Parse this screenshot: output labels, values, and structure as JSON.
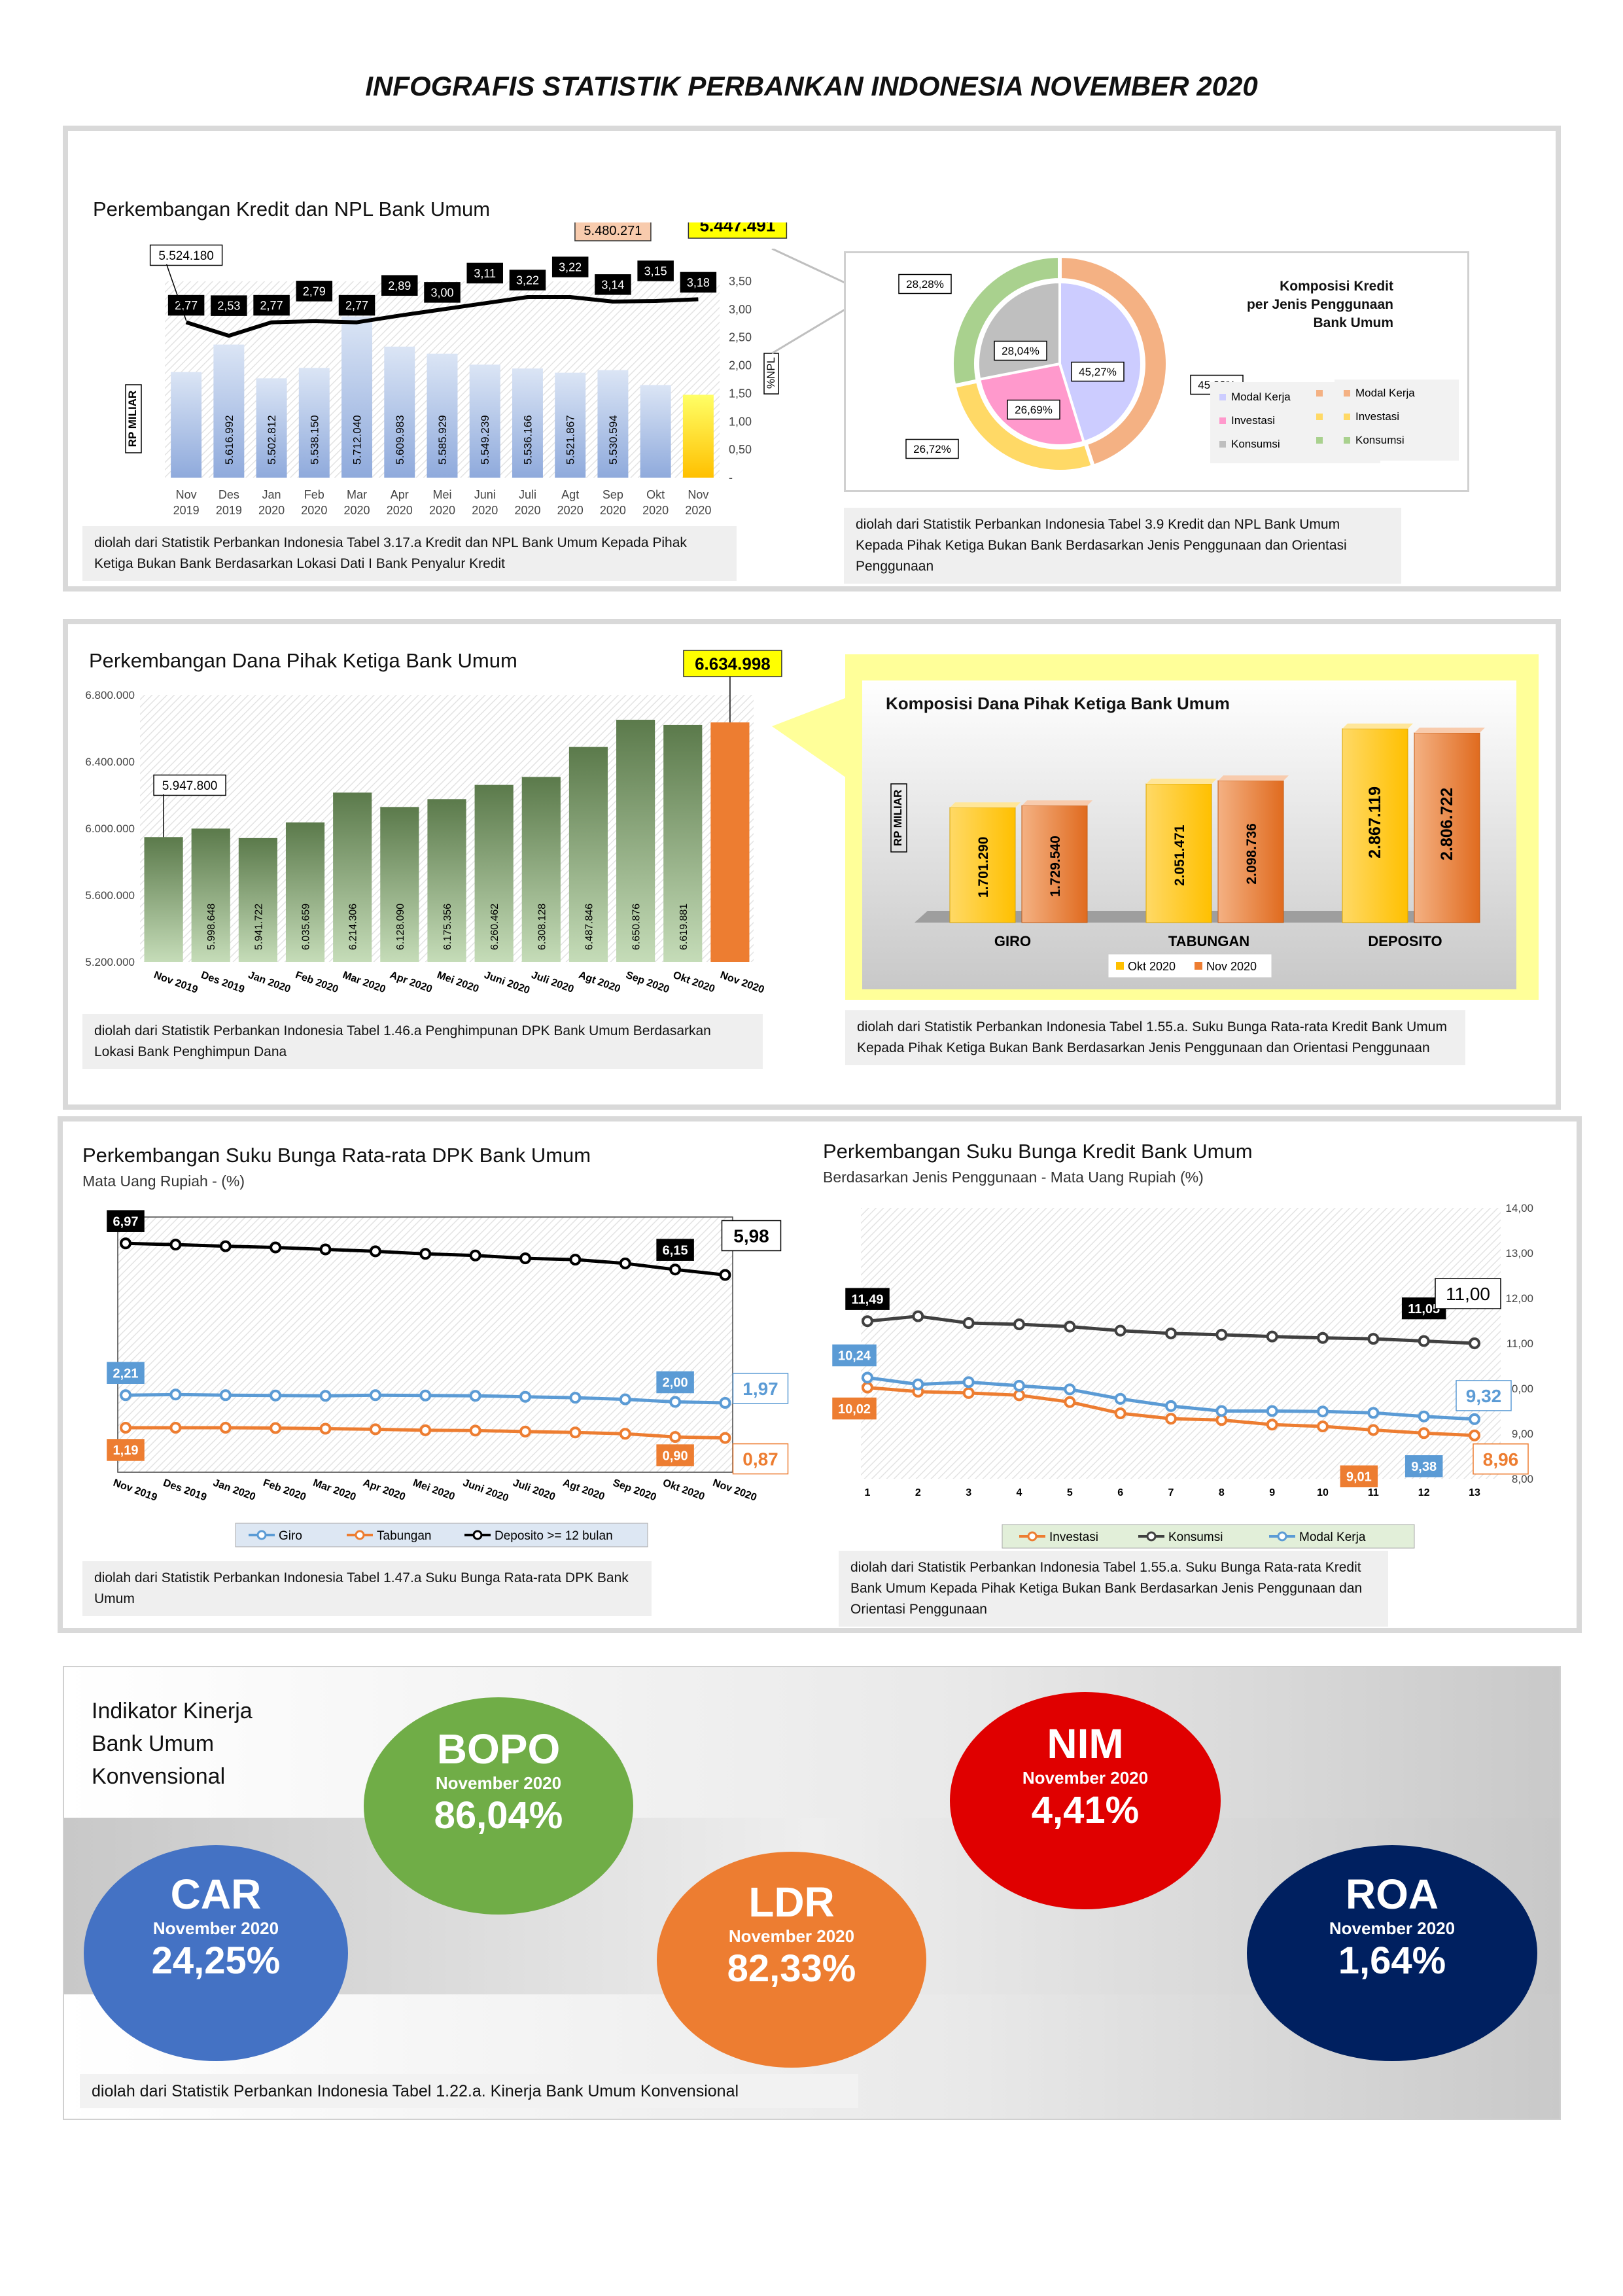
{
  "page_title": "INFOGRAFIS STATISTIK PERBANKAN INDONESIA NOVEMBER 2020",
  "kredit": {
    "title": "Perkembangan Kredit dan NPL Bank Umum",
    "note": "diolah dari Statistik Perbankan Indonesia Tabel 3.17.a Kredit dan NPL Bank Umum Kepada Pihak Ketiga Bukan Bank Berdasarkan Lokasi Dati I Bank Penyalur Kredit",
    "chart_data": {
      "type": "bar",
      "categories": [
        "Nov 2019",
        "Des 2019",
        "Jan 2020",
        "Feb 2020",
        "Mar 2020",
        "Apr 2020",
        "Mei 2020",
        "Juni 2020",
        "Juli 2020",
        "Agt 2020",
        "Sep 2020",
        "Okt 2020",
        "Nov 2020"
      ],
      "category_lines": [
        [
          "Nov",
          "2019"
        ],
        [
          "Des",
          "2019"
        ],
        [
          "Jan",
          "2020"
        ],
        [
          "Feb",
          "2020"
        ],
        [
          "Mar",
          "2020"
        ],
        [
          "Apr",
          "2020"
        ],
        [
          "Mei",
          "2020"
        ],
        [
          "Juni",
          "2020"
        ],
        [
          "Juli",
          "2020"
        ],
        [
          "Agt",
          "2020"
        ],
        [
          "Sep",
          "2020"
        ],
        [
          "Okt",
          "2020"
        ],
        [
          "Nov",
          "2020"
        ]
      ],
      "values": [
        5524180,
        5616992,
        5502812,
        5538150,
        5712040,
        5609983,
        5585929,
        5549239,
        5536166,
        5521867,
        5530594,
        5480271,
        5447491
      ],
      "value_labels": [
        "5.524.180",
        "5.616.992",
        "5.502.812",
        "5.538.150",
        "5.712.040",
        "5.609.983",
        "5.585.929",
        "5.549.239",
        "5.536.166",
        "5.521.867",
        "5.530.594",
        "5.480.271",
        "5.447.491"
      ],
      "npl": [
        2.77,
        2.53,
        2.77,
        2.79,
        2.77,
        2.89,
        3.0,
        3.11,
        3.22,
        3.22,
        3.14,
        3.15,
        3.18
      ],
      "npl_labels": [
        "2,77",
        "2,53",
        "2,77",
        "2,79",
        "2,77",
        "2,89",
        "3,00",
        "3,11",
        "3,22",
        "3,22",
        "3,14",
        "3,15",
        "3,18"
      ],
      "ylabel": "RP MILIAR",
      "y2label": "%NPL",
      "y2ticks": [
        "3,50",
        "3,00",
        "2,50",
        "2,00",
        "1,50",
        "1,00",
        "0,50",
        "-"
      ],
      "y2lim": [
        0,
        3.5
      ],
      "colors": {
        "bar": "#b4c7e7",
        "last_bar": "#ffd700",
        "line": "#000000"
      }
    }
  },
  "komposisi_kredit": {
    "title_lines": [
      "Komposisi Kredit",
      "per Jenis Penggunaan",
      "Bank Umum"
    ],
    "note": "diolah dari Statistik Perbankan Indonesia Tabel 3.9 Kredit dan NPL Bank Umum Kepada Pihak Ketiga Bukan Bank Berdasarkan Jenis Penggunaan dan Orientasi Penggunaan",
    "chart_data": {
      "type": "pie",
      "categories": [
        "Modal Kerja",
        "Investasi",
        "Konsumsi"
      ],
      "inner": [
        45.27,
        26.69,
        28.04
      ],
      "inner_labels": [
        "45,27%",
        "26,69%",
        "28,04%"
      ],
      "outer": [
        45.0,
        26.72,
        28.28
      ],
      "outer_labels": [
        "45,00%",
        "26,72%",
        "28,28%"
      ],
      "inner_colors": [
        "#ccccff",
        "#ff99cc",
        "#bfbfbf"
      ],
      "outer_colors": [
        "#f4b183",
        "#ffd966",
        "#a9d18e"
      ]
    }
  },
  "dpk": {
    "title": "Perkembangan Dana Pihak Ketiga Bank Umum",
    "note": "diolah dari Statistik Perbankan Indonesia Tabel 1.46.a Penghimpunan DPK Bank Umum Berdasarkan Lokasi Bank Penghimpun Dana",
    "chart_data": {
      "type": "bar",
      "categories": [
        "Nov 2019",
        "Des 2019",
        "Jan 2020",
        "Feb 2020",
        "Mar 2020",
        "Apr 2020",
        "Mei 2020",
        "Juni 2020",
        "Juli 2020",
        "Agt 2020",
        "Sep 2020",
        "Okt 2020",
        "Nov 2020"
      ],
      "values": [
        5947800,
        5998648,
        5941722,
        6035659,
        6214306,
        6128090,
        6175356,
        6260462,
        6308128,
        6487846,
        6650876,
        6619881,
        6634998
      ],
      "value_labels": [
        "5.947.800",
        "5.998.648",
        "5.941.722",
        "6.035.659",
        "6.214.306",
        "6.128.090",
        "6.175.356",
        "6.260.462",
        "6.308.128",
        "6.487.846",
        "6.650.876",
        "6.619.881",
        "6.634.998"
      ],
      "yticks": [
        "6.800.000",
        "6.400.000",
        "6.000.000",
        "5.600.000",
        "5.200.000"
      ],
      "ylim": [
        5200000,
        6800000
      ],
      "colors": {
        "bar": "#7f9f6f",
        "last_bar": "#ed7d31"
      }
    }
  },
  "komposisi_dpk": {
    "title": "Komposisi Dana Pihak Ketiga Bank Umum",
    "note": "diolah dari Statistik Perbankan Indonesia Tabel 1.55.a. Suku Bunga Rata-rata Kredit Bank Umum Kepada Pihak Ketiga Bukan Bank Berdasarkan Jenis Penggunaan dan Orientasi Penggunaan",
    "chart_data": {
      "type": "bar",
      "categories": [
        "GIRO",
        "TABUNGAN",
        "DEPOSITO"
      ],
      "series": [
        {
          "name": "Okt 2020",
          "values": [
            1701290,
            2051471,
            2867119
          ],
          "labels": [
            "1.701.290",
            "2.051.471",
            "2.867.119"
          ]
        },
        {
          "name": "Nov 2020",
          "values": [
            1729540,
            2098736,
            2806722
          ],
          "labels": [
            "1.729.540",
            "2.098.736",
            "2.806.722"
          ]
        }
      ],
      "ylabel": "RP MILIAR",
      "colors": [
        "#ffc000",
        "#ed7d31"
      ]
    }
  },
  "bunga_dpk": {
    "title": "Perkembangan Suku Bunga Rata-rata DPK Bank Umum",
    "subtitle": "Mata Uang Rupiah - (%)",
    "note": "diolah dari Statistik Perbankan Indonesia Tabel 1.47.a Suku Bunga Rata-rata DPK Bank Umum",
    "chart_data": {
      "type": "line",
      "categories": [
        "Nov 2019",
        "Des 2019",
        "Jan 2020",
        "Feb 2020",
        "Mar 2020",
        "Apr 2020",
        "Mei 2020",
        "Juni 2020",
        "Juli 2020",
        "Agt 2020",
        "Sep 2020",
        "Okt 2020",
        "Nov 2020"
      ],
      "series": [
        {
          "name": "Giro",
          "values": [
            2.21,
            2.23,
            2.21,
            2.2,
            2.19,
            2.21,
            2.2,
            2.19,
            2.16,
            2.13,
            2.08,
            2.0,
            1.97
          ],
          "color": "#5b9bd5"
        },
        {
          "name": "Tabungan",
          "values": [
            1.19,
            1.19,
            1.19,
            1.18,
            1.16,
            1.14,
            1.11,
            1.1,
            1.07,
            1.04,
            1.0,
            0.9,
            0.87
          ],
          "color": "#ed7d31"
        },
        {
          "name": "Deposito >= 12 bulan",
          "values": [
            6.97,
            6.93,
            6.88,
            6.84,
            6.78,
            6.72,
            6.64,
            6.59,
            6.5,
            6.46,
            6.34,
            6.15,
            5.98
          ],
          "color": "#000000"
        }
      ],
      "point_labels": {
        "deposito_first": "6,97",
        "deposito_okt": "6,15",
        "deposito_last": "5,98",
        "giro_first": "2,21",
        "giro_okt": "2,00",
        "giro_last": "1,97",
        "tabungan_first": "1,19",
        "tabungan_okt": "0,90",
        "tabungan_last": "0,87"
      },
      "ylim": [
        0,
        8
      ]
    }
  },
  "bunga_kredit": {
    "title": "Perkembangan Suku Bunga Kredit Bank Umum",
    "subtitle": "Berdasarkan Jenis Penggunaan - Mata Uang Rupiah (%)",
    "note": "diolah dari Statistik Perbankan Indonesia Tabel 1.55.a. Suku Bunga Rata-rata Kredit Bank Umum Kepada Pihak Ketiga Bukan Bank Berdasarkan Jenis Penggunaan dan Orientasi Penggunaan",
    "chart_data": {
      "type": "line",
      "categories": [
        "1",
        "2",
        "3",
        "4",
        "5",
        "6",
        "7",
        "8",
        "9",
        "10",
        "11",
        "12",
        "13"
      ],
      "series": [
        {
          "name": "Investasi",
          "values": [
            10.02,
            9.93,
            9.9,
            9.85,
            9.7,
            9.45,
            9.33,
            9.3,
            9.2,
            9.16,
            9.08,
            9.01,
            8.96
          ],
          "color": "#ed7d31"
        },
        {
          "name": "Konsumsi",
          "values": [
            11.49,
            11.6,
            11.45,
            11.42,
            11.37,
            11.28,
            11.22,
            11.19,
            11.15,
            11.12,
            11.1,
            11.05,
            11.0
          ],
          "color": "#404040"
        },
        {
          "name": "Modal Kerja",
          "values": [
            10.24,
            10.09,
            10.14,
            10.06,
            9.98,
            9.77,
            9.61,
            9.5,
            9.5,
            9.49,
            9.46,
            9.38,
            9.32
          ],
          "color": "#5b9bd5"
        }
      ],
      "point_labels": {
        "konsumsi_first": "11,49",
        "konsumsi_12": "11,05",
        "konsumsi_last": "11,00",
        "modal_first": "10,24",
        "modal_12": "9,38",
        "modal_last": "9,32",
        "investasi_first": "10,02",
        "investasi_12": "9,01",
        "investasi_last": "8,96"
      },
      "yticks": [
        "14,00",
        "13,00",
        "12,00",
        "11,00",
        "10,00",
        "9,00",
        "8,00"
      ],
      "ylim": [
        8,
        14
      ]
    }
  },
  "kinerja": {
    "title_lines": [
      "Indikator Kinerja",
      "Bank Umum",
      "Konvensional"
    ],
    "note": "diolah dari Statistik Perbankan Indonesia Tabel 1.22.a. Kinerja Bank Umum Konvensional",
    "items": [
      {
        "name": "CAR",
        "period": "November 2020",
        "value": "24,25%",
        "color": "#4472c4"
      },
      {
        "name": "BOPO",
        "period": "November 2020",
        "value": "86,04%",
        "color": "#70ad47"
      },
      {
        "name": "LDR",
        "period": "November 2020",
        "value": "82,33%",
        "color": "#ed7d31"
      },
      {
        "name": "NIM",
        "period": "November 2020",
        "value": "4,41%",
        "color": "#e00000"
      },
      {
        "name": "ROA",
        "period": "November 2020",
        "value": "1,64%",
        "color": "#002060"
      }
    ]
  }
}
